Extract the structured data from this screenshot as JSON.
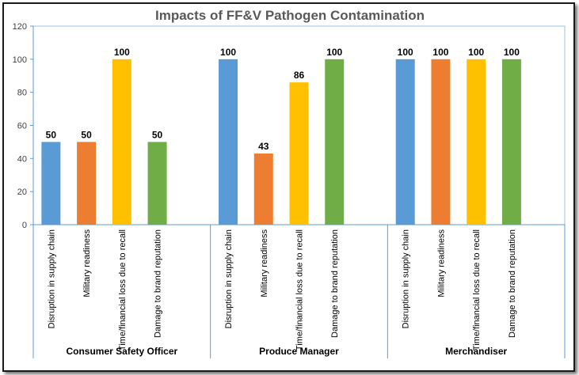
{
  "chart_data": {
    "type": "bar",
    "title": "Impacts of FF&V Pathogen Contamination",
    "xlabel": "",
    "ylabel": "",
    "ylim": [
      0,
      120
    ],
    "yticks": [
      0,
      20,
      40,
      60,
      80,
      100,
      120
    ],
    "grid": false,
    "legend": "none",
    "categories": [
      "Disruption in supply chain",
      "Military readiness",
      "Time/financial loss due to recall",
      "Damage to brand reputation"
    ],
    "colors": [
      "#5b9bd5",
      "#ed7d31",
      "#ffc000",
      "#70ad47"
    ],
    "groups": [
      {
        "name": "Consumer Safety Officer",
        "values": [
          50,
          50,
          100,
          50
        ]
      },
      {
        "name": "Produce Manager",
        "values": [
          100,
          43,
          86,
          100
        ]
      },
      {
        "name": "Merchandiser",
        "values": [
          100,
          100,
          100,
          100
        ]
      }
    ]
  }
}
